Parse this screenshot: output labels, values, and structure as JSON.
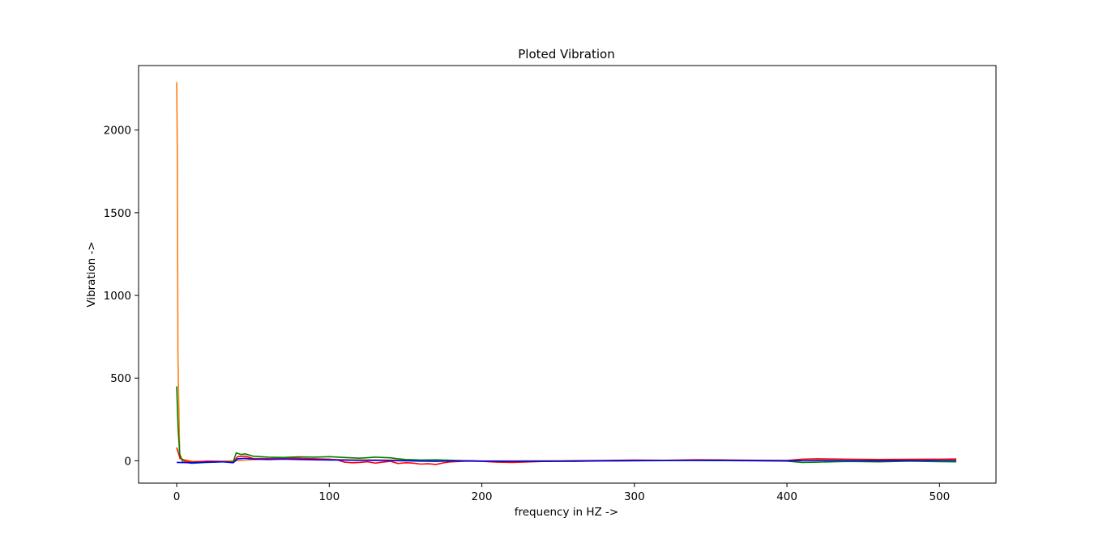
{
  "chart_data": {
    "type": "line",
    "title": "Ploted Vibration",
    "xlabel": "frequency in HZ ->",
    "ylabel": "Vibration ->",
    "xlim": [
      -25,
      537
    ],
    "ylim": [
      -135,
      2390
    ],
    "xticks": [
      0,
      100,
      200,
      300,
      400,
      500
    ],
    "yticks": [
      0,
      500,
      1000,
      1500,
      2000
    ],
    "grid": false,
    "legend": "none",
    "series": [
      {
        "color": "#ff7f0e",
        "points": [
          [
            0,
            2290
          ],
          [
            0.4,
            1850
          ],
          [
            0.8,
            640
          ],
          [
            1.2,
            420
          ],
          [
            2,
            12
          ],
          [
            10,
            -3
          ],
          [
            30,
            -4
          ],
          [
            60,
            12
          ],
          [
            120,
            6
          ],
          [
            200,
            -1
          ],
          [
            300,
            2
          ],
          [
            400,
            1
          ],
          [
            511,
            0
          ]
        ]
      },
      {
        "color": "#ff0000",
        "points": [
          [
            0,
            80
          ],
          [
            2,
            20
          ],
          [
            5,
            0
          ],
          [
            10,
            -8
          ],
          [
            20,
            -2
          ],
          [
            30,
            -4
          ],
          [
            37,
            -6
          ],
          [
            40,
            25
          ],
          [
            45,
            28
          ],
          [
            50,
            14
          ],
          [
            60,
            13
          ],
          [
            70,
            15
          ],
          [
            80,
            15
          ],
          [
            90,
            12
          ],
          [
            100,
            10
          ],
          [
            105,
            6
          ],
          [
            110,
            -8
          ],
          [
            115,
            -12
          ],
          [
            120,
            -10
          ],
          [
            125,
            -6
          ],
          [
            130,
            -14
          ],
          [
            135,
            -8
          ],
          [
            140,
            -3
          ],
          [
            145,
            -16
          ],
          [
            150,
            -12
          ],
          [
            155,
            -14
          ],
          [
            160,
            -20
          ],
          [
            165,
            -18
          ],
          [
            170,
            -22
          ],
          [
            175,
            -12
          ],
          [
            180,
            -6
          ],
          [
            190,
            -2
          ],
          [
            200,
            -3
          ],
          [
            210,
            -8
          ],
          [
            220,
            -10
          ],
          [
            240,
            -4
          ],
          [
            260,
            0
          ],
          [
            280,
            2
          ],
          [
            300,
            4
          ],
          [
            320,
            3
          ],
          [
            340,
            6
          ],
          [
            360,
            5
          ],
          [
            380,
            3
          ],
          [
            400,
            2
          ],
          [
            410,
            10
          ],
          [
            420,
            12
          ],
          [
            440,
            10
          ],
          [
            460,
            8
          ],
          [
            480,
            9
          ],
          [
            500,
            10
          ],
          [
            511,
            11
          ]
        ]
      },
      {
        "color": "#008000",
        "points": [
          [
            0,
            450
          ],
          [
            0.5,
            300
          ],
          [
            1,
            180
          ],
          [
            2,
            40
          ],
          [
            4,
            -8
          ],
          [
            10,
            -15
          ],
          [
            20,
            -10
          ],
          [
            30,
            -6
          ],
          [
            37,
            -8
          ],
          [
            39,
            48
          ],
          [
            42,
            38
          ],
          [
            45,
            42
          ],
          [
            50,
            28
          ],
          [
            60,
            22
          ],
          [
            70,
            20
          ],
          [
            80,
            24
          ],
          [
            90,
            22
          ],
          [
            100,
            25
          ],
          [
            110,
            20
          ],
          [
            120,
            16
          ],
          [
            130,
            22
          ],
          [
            140,
            18
          ],
          [
            145,
            12
          ],
          [
            150,
            8
          ],
          [
            160,
            5
          ],
          [
            170,
            6
          ],
          [
            180,
            3
          ],
          [
            190,
            0
          ],
          [
            200,
            -2
          ],
          [
            220,
            -4
          ],
          [
            240,
            -2
          ],
          [
            260,
            -3
          ],
          [
            280,
            -1
          ],
          [
            300,
            0
          ],
          [
            320,
            1
          ],
          [
            340,
            2
          ],
          [
            360,
            1
          ],
          [
            380,
            0
          ],
          [
            400,
            -2
          ],
          [
            410,
            -10
          ],
          [
            420,
            -8
          ],
          [
            440,
            -4
          ],
          [
            460,
            -6
          ],
          [
            480,
            -2
          ],
          [
            500,
            -5
          ],
          [
            511,
            -6
          ]
        ]
      },
      {
        "color": "#0000ff",
        "points": [
          [
            0,
            -10
          ],
          [
            10,
            -12
          ],
          [
            20,
            -8
          ],
          [
            30,
            -6
          ],
          [
            37,
            -12
          ],
          [
            40,
            12
          ],
          [
            45,
            15
          ],
          [
            50,
            10
          ],
          [
            60,
            8
          ],
          [
            70,
            10
          ],
          [
            80,
            8
          ],
          [
            90,
            6
          ],
          [
            100,
            5
          ],
          [
            110,
            4
          ],
          [
            120,
            2
          ],
          [
            130,
            3
          ],
          [
            140,
            1
          ],
          [
            150,
            0
          ],
          [
            160,
            -2
          ],
          [
            170,
            -3
          ],
          [
            180,
            -1
          ],
          [
            190,
            0
          ],
          [
            200,
            -2
          ],
          [
            220,
            -4
          ],
          [
            240,
            -3
          ],
          [
            260,
            -2
          ],
          [
            280,
            0
          ],
          [
            300,
            1
          ],
          [
            320,
            2
          ],
          [
            340,
            3
          ],
          [
            360,
            2
          ],
          [
            380,
            1
          ],
          [
            400,
            0
          ],
          [
            420,
            2
          ],
          [
            440,
            1
          ],
          [
            460,
            0
          ],
          [
            480,
            1
          ],
          [
            500,
            2
          ],
          [
            511,
            2
          ]
        ]
      }
    ]
  }
}
